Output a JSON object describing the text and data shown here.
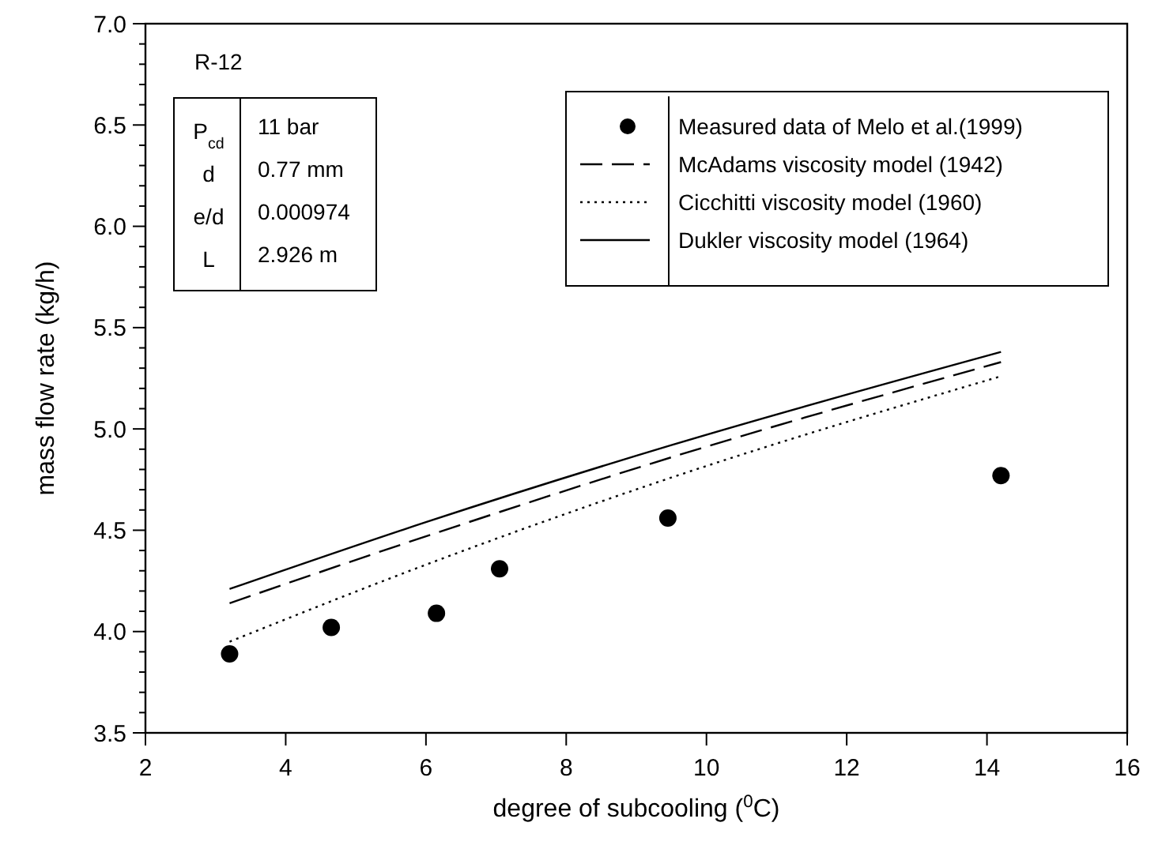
{
  "chart_data": {
    "type": "line",
    "xlabel": "degree of subcooling ($^{0}$C)",
    "ylabel": "mass flow rate (kg/h)",
    "xlim": [
      2,
      16
    ],
    "xticks": [
      2,
      4,
      6,
      8,
      10,
      12,
      14,
      16
    ],
    "ylim": [
      3.5,
      7.0
    ],
    "yticks": [
      {
        "value": 3.5,
        "label": "3.5"
      },
      {
        "value": 3.6,
        "label": null
      },
      {
        "value": 3.7,
        "label": null
      },
      {
        "value": 3.8,
        "label": null
      },
      {
        "value": 3.9,
        "label": null
      },
      {
        "value": 4.0,
        "label": "4.0"
      },
      {
        "value": 4.1,
        "label": null
      },
      {
        "value": 4.2,
        "label": null
      },
      {
        "value": 4.3,
        "label": null
      },
      {
        "value": 4.4,
        "label": null
      },
      {
        "value": 4.5,
        "label": "4.5"
      },
      {
        "value": 4.6,
        "label": null
      },
      {
        "value": 4.7,
        "label": null
      },
      {
        "value": 4.8,
        "label": null
      },
      {
        "value": 4.9,
        "label": null
      },
      {
        "value": 5.0,
        "label": "5.0"
      },
      {
        "value": 5.1,
        "label": null
      },
      {
        "value": 5.2,
        "label": null
      },
      {
        "value": 5.3,
        "label": null
      },
      {
        "value": 5.4,
        "label": null
      },
      {
        "value": 5.5,
        "label": "5.5"
      },
      {
        "value": 5.6,
        "label": null
      },
      {
        "value": 5.7,
        "label": null
      },
      {
        "value": 5.8,
        "label": null
      },
      {
        "value": 5.9,
        "label": null
      },
      {
        "value": 6.0,
        "label": "6.0"
      },
      {
        "value": 6.1,
        "label": null
      },
      {
        "value": 6.2,
        "label": null
      },
      {
        "value": 6.3,
        "label": null
      },
      {
        "value": 6.4,
        "label": null
      },
      {
        "value": 6.5,
        "label": "6.5"
      },
      {
        "value": 6.6,
        "label": null
      },
      {
        "value": 6.7,
        "label": null
      },
      {
        "value": 6.8,
        "label": null
      },
      {
        "value": 6.9,
        "label": null
      },
      {
        "value": 7.0,
        "label": "7.0"
      }
    ],
    "legend": "top right",
    "annotations": [
      "R-12",
      "P$_{cd}$",
      "11 bar",
      "d",
      "0.77 mm",
      "e/d",
      "0.000974",
      "L",
      "2.926 m"
    ],
    "series": [
      {
        "name": "Measured data of Melo et al.(1999)",
        "type": "scatter",
        "marker": "circle",
        "color": "#000000",
        "x": [
          3.2,
          4.65,
          6.15,
          7.05,
          9.45,
          14.2
        ],
        "values": [
          3.89,
          4.02,
          4.09,
          4.31,
          4.56,
          4.77
        ]
      },
      {
        "name": "McAdams viscosity model (1942)",
        "line_style": "dashed",
        "color": "#000000",
        "x": [
          3.2,
          6,
          9.5,
          14.2
        ],
        "values": [
          4.14,
          4.47,
          4.86,
          5.33
        ]
      },
      {
        "name": "Cicchitti viscosity model (1960)",
        "line_style": "dotted",
        "color": "#000000",
        "x": [
          3.2,
          6,
          9.5,
          14.2
        ],
        "values": [
          3.95,
          4.33,
          4.76,
          5.26
        ]
      },
      {
        "name": "Dukler viscosity model (1964)",
        "line_style": "solid",
        "color": "#000000",
        "x": [
          3.2,
          6,
          9.5,
          14.2
        ],
        "values": [
          4.21,
          4.54,
          4.92,
          5.38
        ]
      }
    ]
  }
}
